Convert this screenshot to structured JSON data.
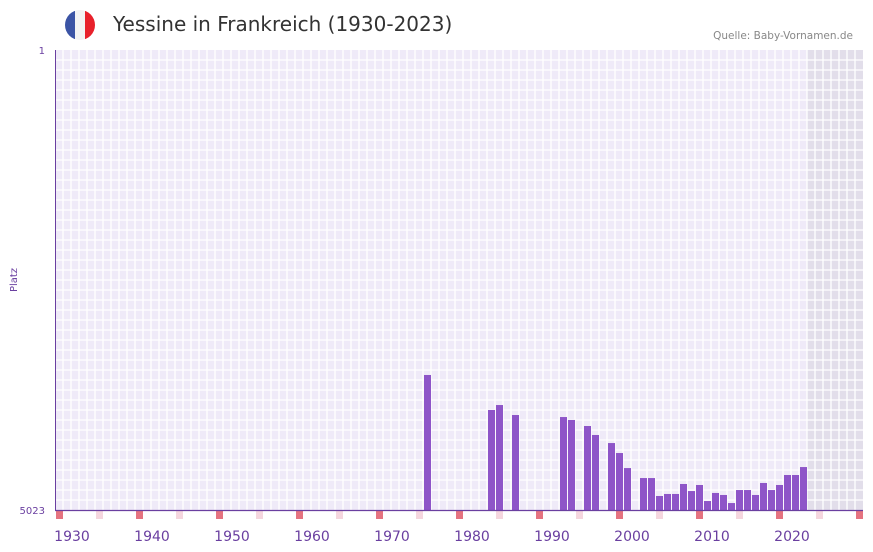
{
  "header": {
    "title": "Yessine in Frankreich (1930-2023)",
    "source": "Quelle: Baby-Vornamen.de",
    "flag_colors": [
      "#3b54a5",
      "#f3f3f3",
      "#e8212b"
    ]
  },
  "colors": {
    "bar": "#8e55c8",
    "axis": "#6a3fa0",
    "marker_decade": "#e57380",
    "marker_half": "#f5d6de",
    "grid_bg": "#efeaf8",
    "future_bg": "#e2deea"
  },
  "chart_data": {
    "type": "bar",
    "title": "Yessine in Frankreich (1930-2023)",
    "xlabel": "",
    "ylabel": "Platz",
    "y_inverted": true,
    "ylim": [
      1,
      5023
    ],
    "y_ticks": [
      "1",
      "5023"
    ],
    "xlim": [
      1928,
      2028
    ],
    "x_ticks": [
      "1930",
      "1940",
      "1950",
      "1960",
      "1970",
      "1980",
      "1990",
      "2000",
      "2010",
      "2020"
    ],
    "future_from": 2022,
    "grid": true,
    "x": [
      1974,
      1982,
      1983,
      1985,
      1991,
      1992,
      1994,
      1995,
      1997,
      1998,
      1999,
      2001,
      2002,
      2003,
      2004,
      2005,
      2006,
      2007,
      2008,
      2009,
      2010,
      2011,
      2012,
      2013,
      2014,
      2015,
      2016,
      2017,
      2018,
      2019,
      2020,
      2021
    ],
    "values": [
      3549,
      3931,
      3877,
      3986,
      4008,
      4040,
      4106,
      4204,
      4292,
      4401,
      4565,
      4674,
      4674,
      4870,
      4848,
      4848,
      4739,
      4816,
      4750,
      4925,
      4837,
      4859,
      4947,
      4805,
      4805,
      4859,
      4728,
      4805,
      4750,
      4641,
      4641,
      4554
    ]
  }
}
